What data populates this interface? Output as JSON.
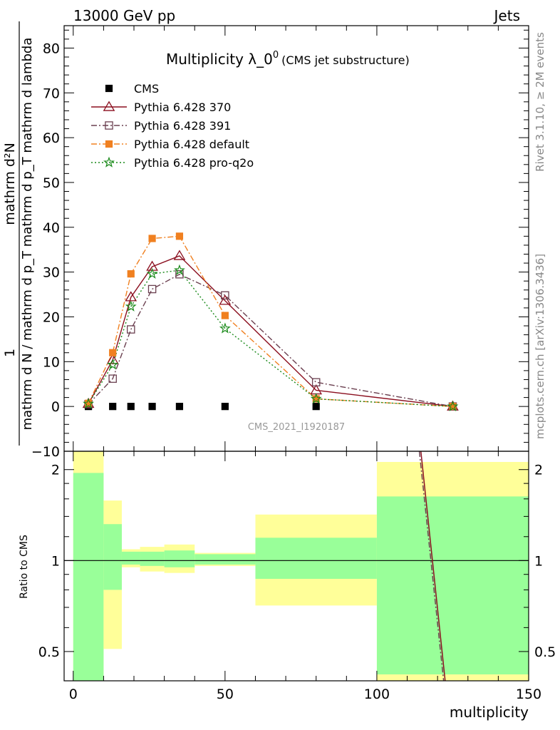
{
  "header": {
    "left": "13000 GeV pp",
    "right": "Jets"
  },
  "side_labels": {
    "rivet": "Rivet 3.1.10, ≥ 2M events",
    "mcplots": "mcplots.cern.ch [arXiv:1306.3436]"
  },
  "watermark": "CMS_2021_I1920187",
  "chart_data": [
    {
      "type": "line",
      "title": "Multiplicity λ_0",
      "title_superscript": "0",
      "subtitle": "(CMS jet substructure)",
      "ylabel_numerator": "1",
      "ylabel_num_right": "mathrm d²N",
      "ylabel_denominator": "mathrm d N / mathrm d p_T mathrm d p_T mathrm d lambda",
      "ylim": [
        -10,
        85
      ],
      "xlim": [
        -3,
        150
      ],
      "yticks": [
        -10,
        0,
        10,
        20,
        30,
        40,
        50,
        60,
        70,
        80
      ],
      "legend_position": "top-left",
      "series": [
        {
          "name": "CMS",
          "color": "#000000",
          "marker": "square-filled",
          "line": "none",
          "x": [
            5,
            13,
            19,
            26,
            35,
            50,
            80,
            125
          ],
          "y": [
            0,
            0,
            0,
            0,
            0,
            0,
            0,
            0
          ]
        },
        {
          "name": "Pythia 6.428 370",
          "color": "#8b0f1f",
          "marker": "triangle-open",
          "line": "solid",
          "x": [
            5,
            13,
            19,
            26,
            35,
            50,
            80,
            125
          ],
          "y": [
            0.6,
            10.4,
            24.4,
            31.2,
            33.6,
            23.6,
            3.6,
            0
          ]
        },
        {
          "name": "Pythia 6.428 391",
          "color": "#6b4050",
          "marker": "square-open",
          "line": "dashdot",
          "x": [
            5,
            13,
            19,
            26,
            35,
            50,
            80,
            125
          ],
          "y": [
            0.5,
            6.2,
            17.2,
            26.2,
            29.5,
            24.8,
            5.4,
            0
          ]
        },
        {
          "name": "Pythia 6.428 default",
          "color": "#f08020",
          "marker": "square-filled",
          "line": "dashdot",
          "x": [
            5,
            13,
            19,
            26,
            35,
            50,
            80,
            125
          ],
          "y": [
            0.7,
            12.0,
            29.6,
            37.5,
            38.0,
            20.3,
            1.7,
            0
          ]
        },
        {
          "name": "Pythia 6.428 pro-q2o",
          "color": "#1a8a1a",
          "marker": "star",
          "line": "dotted",
          "x": [
            5,
            13,
            19,
            26,
            35,
            50,
            80,
            125
          ],
          "y": [
            0.6,
            9.3,
            22.3,
            29.6,
            30.4,
            17.4,
            1.7,
            0
          ]
        }
      ]
    },
    {
      "type": "area",
      "ylabel": "Ratio to CMS",
      "xlabel": "multiplicity",
      "ylim": [
        0.4,
        2.3
      ],
      "log_scale_y": true,
      "xlim": [
        -3,
        150
      ],
      "xticks": [
        0,
        50,
        100,
        150
      ],
      "yticks": [
        0.5,
        1,
        2
      ],
      "band_colors": {
        "outer": "#ffff99",
        "inner": "#99ff99"
      },
      "bins": [
        {
          "x0": 0,
          "x1": 10,
          "inner": [
            0.4,
            1.95
          ],
          "outer": [
            0.4,
            2.3
          ]
        },
        {
          "x0": 10,
          "x1": 16,
          "inner": [
            0.8,
            1.32
          ],
          "outer": [
            0.51,
            1.58
          ]
        },
        {
          "x0": 16,
          "x1": 22,
          "inner": [
            0.97,
            1.07
          ],
          "outer": [
            0.95,
            1.09
          ]
        },
        {
          "x0": 22,
          "x1": 30,
          "inner": [
            0.96,
            1.07
          ],
          "outer": [
            0.92,
            1.11
          ]
        },
        {
          "x0": 30,
          "x1": 40,
          "inner": [
            0.95,
            1.08
          ],
          "outer": [
            0.91,
            1.13
          ]
        },
        {
          "x0": 40,
          "x1": 60,
          "inner": [
            0.97,
            1.05
          ],
          "outer": [
            0.96,
            1.06
          ]
        },
        {
          "x0": 60,
          "x1": 100,
          "inner": [
            0.87,
            1.19
          ],
          "outer": [
            0.71,
            1.42
          ]
        },
        {
          "x0": 100,
          "x1": 150,
          "inner": [
            0.42,
            1.63
          ],
          "outer": [
            0.4,
            2.12
          ]
        }
      ],
      "series": [
        {
          "name": "Pythia 6.428 370",
          "color": "#8b0f1f",
          "x": [
            114.5,
            122.5
          ],
          "y": [
            2.3,
            0.4
          ]
        },
        {
          "name": "Pythia 6.428 391",
          "color": "#6b4050",
          "x": [
            114.0,
            122.0
          ],
          "y": [
            2.3,
            0.4
          ]
        }
      ]
    }
  ]
}
